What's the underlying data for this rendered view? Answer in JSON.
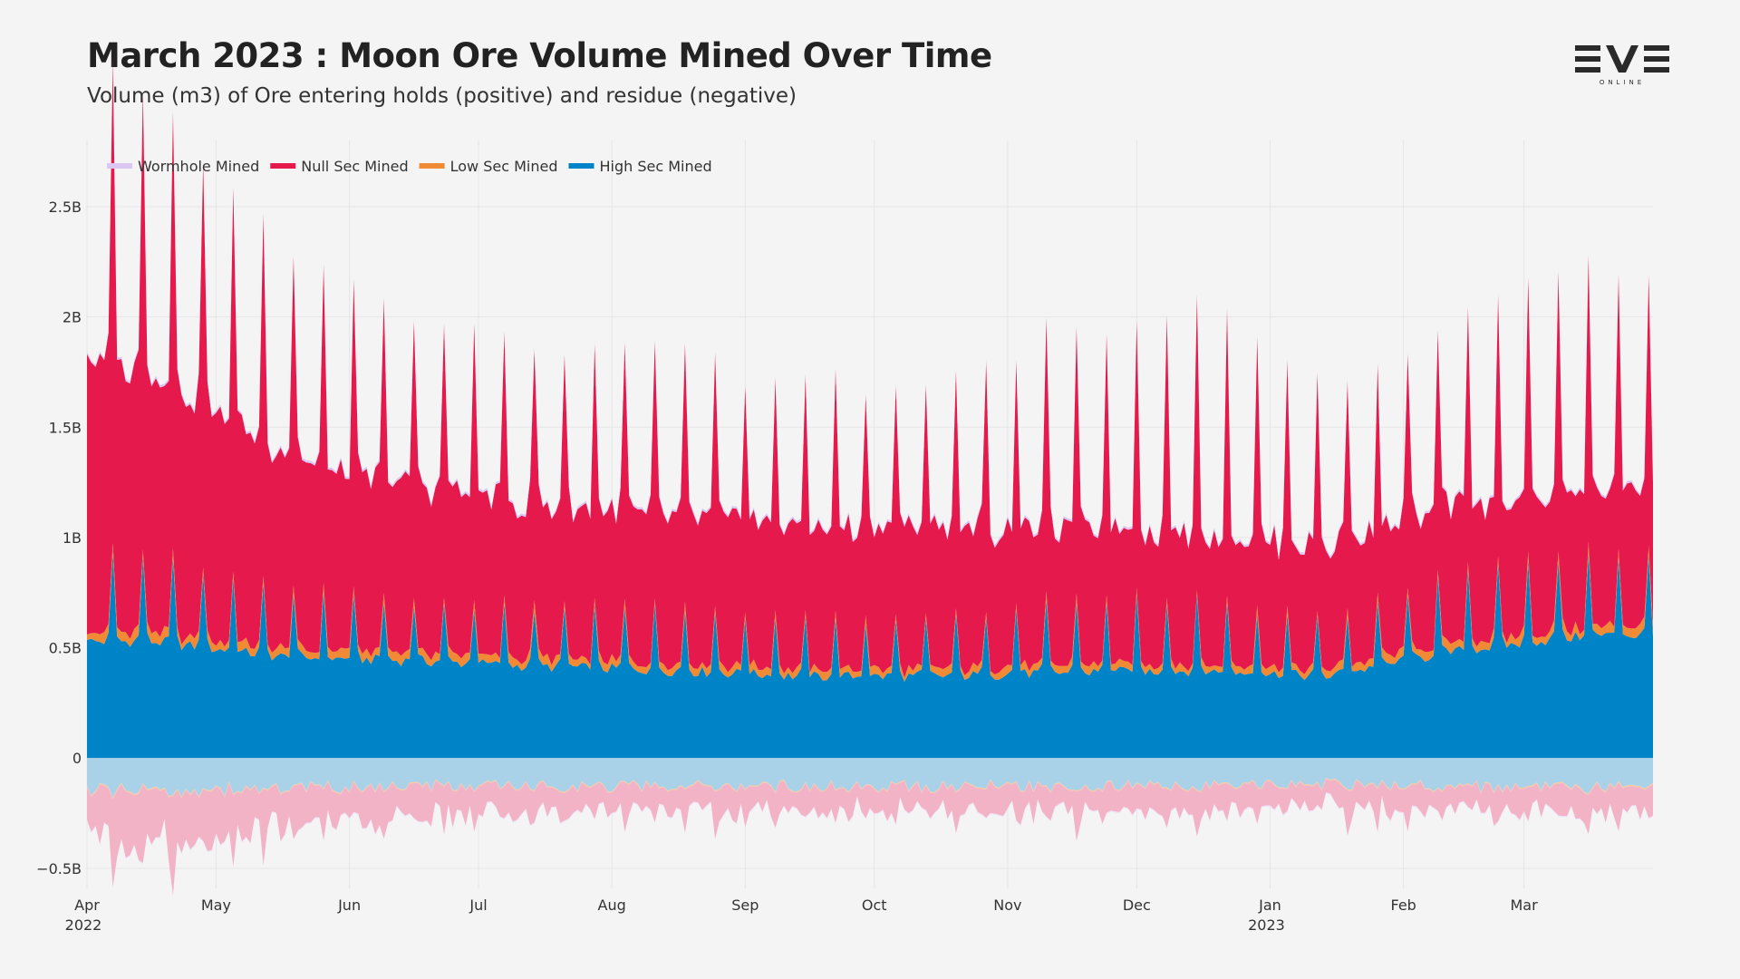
{
  "title": "March 2023 : Moon Ore Volume Mined Over Time",
  "subtitle": "Volume (m3) of Ore entering holds (positive) and residue (negative)",
  "logo": {
    "text": "EVE",
    "subtext": "ONLINE"
  },
  "colors": {
    "wormhole": "#dcc6f2",
    "null": "#e5194b",
    "low": "#f08a34",
    "high": "#0084c8",
    "high_residue": "#a9d2e8",
    "null_residue": "#f2b3c6",
    "low_residue": "#f6c9a4",
    "wormhole_residue": "#efe3f7",
    "background": "#f4f4f4",
    "grid": "#e6e6e6"
  },
  "chart_data": {
    "type": "area",
    "x_start": "2022-04-01",
    "x_end": "2023-03-31",
    "ylim": [
      -0.55,
      2.8
    ],
    "y_unit": "B m3",
    "yticks": [
      {
        "value": 2.5,
        "label": "2.5B"
      },
      {
        "value": 2.0,
        "label": "2B"
      },
      {
        "value": 1.5,
        "label": "1.5B"
      },
      {
        "value": 1.0,
        "label": "1B"
      },
      {
        "value": 0.5,
        "label": "0.5B"
      },
      {
        "value": 0,
        "label": "0"
      },
      {
        "value": -0.5,
        "label": "−0.5B"
      }
    ],
    "xticks": [
      {
        "date": "2022-04-01",
        "label": "Apr",
        "year": "2022"
      },
      {
        "date": "2022-05-01",
        "label": "May",
        "year": ""
      },
      {
        "date": "2022-06-01",
        "label": "Jun",
        "year": ""
      },
      {
        "date": "2022-07-01",
        "label": "Jul",
        "year": ""
      },
      {
        "date": "2022-08-01",
        "label": "Aug",
        "year": ""
      },
      {
        "date": "2022-09-01",
        "label": "Sep",
        "year": ""
      },
      {
        "date": "2022-10-01",
        "label": "Oct",
        "year": ""
      },
      {
        "date": "2022-11-01",
        "label": "Nov",
        "year": ""
      },
      {
        "date": "2022-12-01",
        "label": "Dec",
        "year": ""
      },
      {
        "date": "2023-01-01",
        "label": "Jan",
        "year": "2023"
      },
      {
        "date": "2023-02-01",
        "label": "Feb",
        "year": ""
      },
      {
        "date": "2023-03-01",
        "label": "Mar",
        "year": ""
      }
    ],
    "legend_position": "top-left",
    "grid": true,
    "stack_order": [
      "High Sec Mined",
      "Low Sec Mined",
      "Null Sec Mined",
      "Wormhole Mined"
    ],
    "series": [
      {
        "name": "Wormhole Mined",
        "monthly_mean": [
          0.01,
          0.01,
          0.01,
          0.01,
          0.01,
          0.01,
          0.01,
          0.01,
          0.01,
          0.01,
          0.01,
          0.01
        ],
        "residue_mean": [
          -0.005,
          -0.005,
          -0.005,
          -0.005,
          -0.005,
          -0.005,
          -0.005,
          -0.005,
          -0.005,
          -0.005,
          -0.005,
          -0.005
        ]
      },
      {
        "name": "Null Sec Mined",
        "monthly_mean": [
          1.05,
          0.95,
          0.9,
          0.8,
          0.8,
          0.75,
          0.75,
          0.72,
          0.7,
          0.65,
          0.72,
          0.72
        ],
        "peak": [
          1.85,
          1.45,
          1.25,
          1.15,
          1.12,
          1.05,
          1.05,
          1.2,
          1.3,
          1.05,
          1.1,
          1.25
        ],
        "residue_mean": [
          -0.19,
          -0.14,
          -0.11,
          -0.1,
          -0.09,
          -0.09,
          -0.09,
          -0.09,
          -0.09,
          -0.08,
          -0.09,
          -0.1
        ]
      },
      {
        "name": "Low Sec Mined",
        "monthly_mean": [
          0.04,
          0.035,
          0.035,
          0.035,
          0.035,
          0.03,
          0.03,
          0.03,
          0.03,
          0.03,
          0.035,
          0.04
        ],
        "residue_mean": [
          -0.006,
          -0.005,
          -0.005,
          -0.005,
          -0.005,
          -0.005,
          -0.005,
          -0.005,
          -0.005,
          -0.005,
          -0.005,
          -0.006
        ]
      },
      {
        "name": "High Sec Mined",
        "monthly_mean": [
          0.6,
          0.52,
          0.5,
          0.47,
          0.45,
          0.42,
          0.42,
          0.44,
          0.45,
          0.42,
          0.55,
          0.63
        ],
        "peak": [
          0.92,
          0.75,
          0.7,
          0.68,
          0.68,
          0.62,
          0.62,
          0.72,
          0.72,
          0.62,
          0.85,
          0.92
        ],
        "residue_mean": [
          -0.14,
          -0.13,
          -0.12,
          -0.12,
          -0.12,
          -0.12,
          -0.12,
          -0.12,
          -0.12,
          -0.11,
          -0.12,
          -0.13
        ]
      }
    ]
  }
}
